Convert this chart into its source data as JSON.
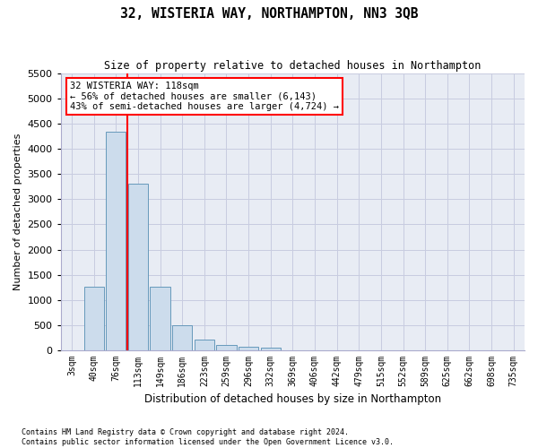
{
  "title": "32, WISTERIA WAY, NORTHAMPTON, NN3 3QB",
  "subtitle": "Size of property relative to detached houses in Northampton",
  "xlabel": "Distribution of detached houses by size in Northampton",
  "ylabel": "Number of detached properties",
  "footer_line1": "Contains HM Land Registry data © Crown copyright and database right 2024.",
  "footer_line2": "Contains public sector information licensed under the Open Government Licence v3.0.",
  "bar_labels": [
    "3sqm",
    "40sqm",
    "76sqm",
    "113sqm",
    "149sqm",
    "186sqm",
    "223sqm",
    "259sqm",
    "296sqm",
    "332sqm",
    "369sqm",
    "406sqm",
    "442sqm",
    "479sqm",
    "515sqm",
    "552sqm",
    "589sqm",
    "625sqm",
    "662sqm",
    "698sqm",
    "735sqm"
  ],
  "bar_values": [
    0,
    1270,
    4340,
    3300,
    1270,
    490,
    220,
    100,
    80,
    60,
    0,
    0,
    0,
    0,
    0,
    0,
    0,
    0,
    0,
    0,
    0
  ],
  "bar_color": "#ccdcec",
  "bar_edge_color": "#6699bb",
  "ylim": [
    0,
    5500
  ],
  "yticks": [
    0,
    500,
    1000,
    1500,
    2000,
    2500,
    3000,
    3500,
    4000,
    4500,
    5000,
    5500
  ],
  "red_line_x": 2.5,
  "annotation_title": "32 WISTERIA WAY: 118sqm",
  "annotation_line2": "← 56% of detached houses are smaller (6,143)",
  "annotation_line3": "43% of semi-detached houses are larger (4,724) →",
  "grid_color": "#c8cce0",
  "bg_color": "#e8ecf4"
}
